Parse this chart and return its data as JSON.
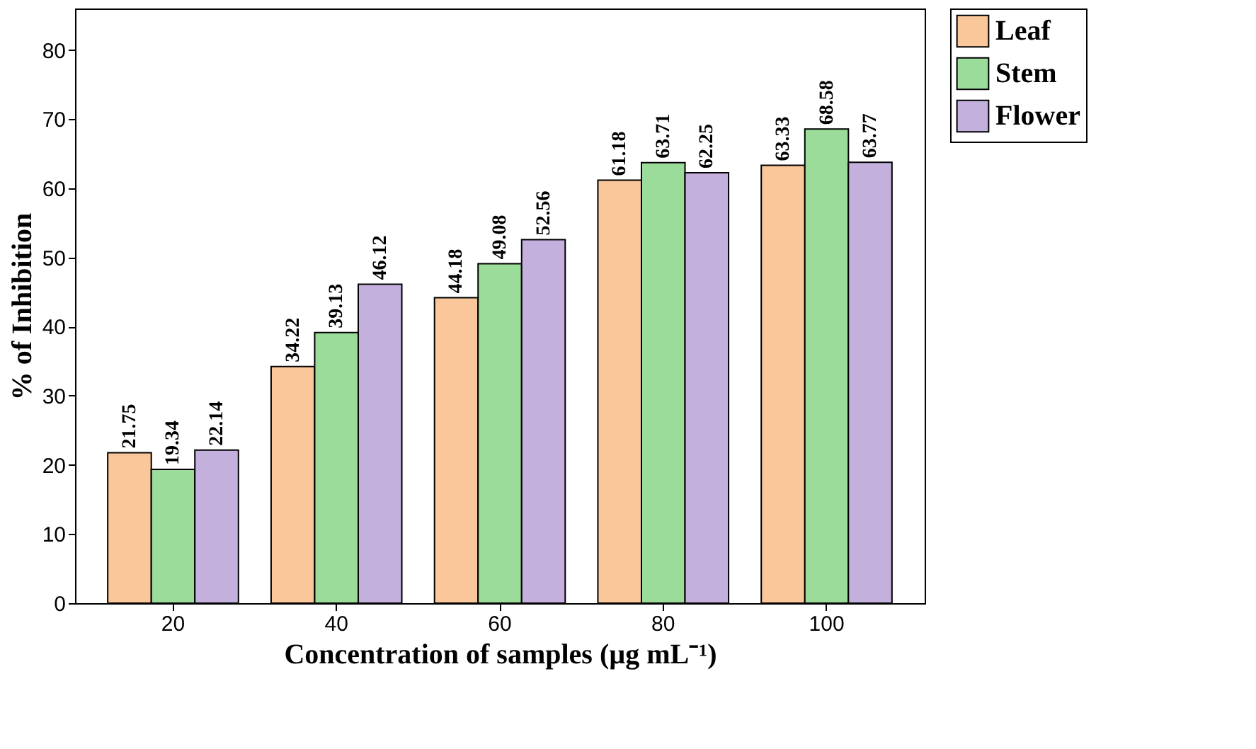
{
  "chart_data": {
    "type": "bar",
    "categories": [
      "20",
      "40",
      "60",
      "80",
      "100"
    ],
    "xlabel": "Concentration of samples (µg mL⁻¹)",
    "ylabel": "% of Inhibition",
    "ylim": [
      0,
      86
    ],
    "yticks": [
      0,
      10,
      20,
      30,
      40,
      50,
      60,
      70,
      80
    ],
    "grid": false,
    "legend": "top right",
    "data_labels": true,
    "series": [
      {
        "name": "Leaf",
        "color": "#f9c79a",
        "values": [
          21.75,
          34.22,
          44.18,
          61.18,
          63.33
        ]
      },
      {
        "name": "Stem",
        "color": "#9bdc9b",
        "values": [
          19.34,
          39.13,
          49.08,
          63.71,
          68.58
        ]
      },
      {
        "name": "Flower",
        "color": "#c3b0dc",
        "values": [
          22.14,
          46.12,
          52.56,
          62.25,
          63.77
        ]
      }
    ]
  }
}
